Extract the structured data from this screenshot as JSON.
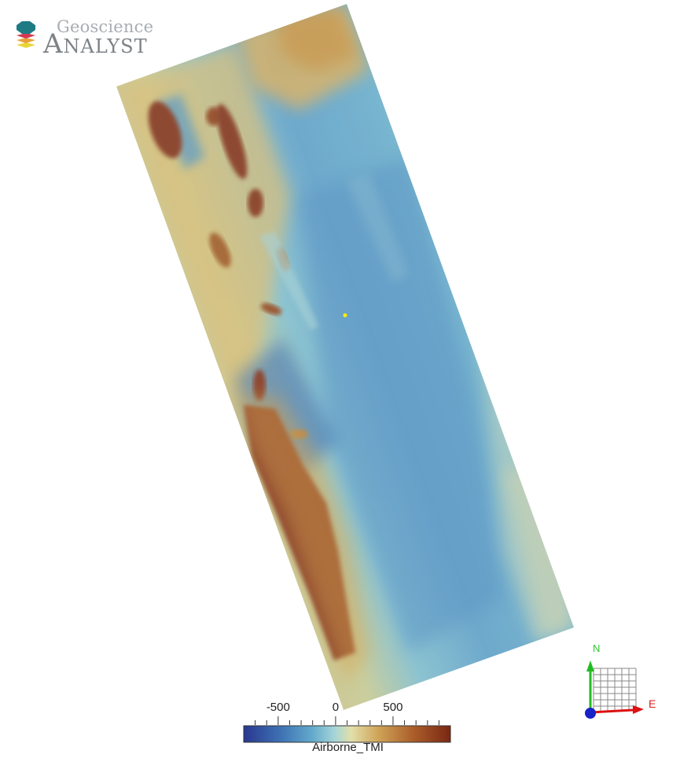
{
  "app": {
    "logo_line1": "Geoscience",
    "logo_line2": "Analyst"
  },
  "viewer": {
    "marker_color": "#ffee00"
  },
  "colorbar": {
    "title": "Airborne_TMI",
    "tick_labels": [
      "-500",
      "0",
      "500"
    ],
    "tick_values": [
      -500,
      0,
      500
    ],
    "range": [
      -800,
      1000
    ],
    "colors": [
      "#29378f",
      "#3e72b4",
      "#62a9cc",
      "#a6d5d8",
      "#e2dfa9",
      "#cfa458",
      "#ab5e2a",
      "#7a2713"
    ]
  },
  "orientation": {
    "north_label": "N",
    "east_label": "E",
    "north_color": "#22bb22",
    "east_color": "#dd1111",
    "up_color": "#1822c8"
  }
}
